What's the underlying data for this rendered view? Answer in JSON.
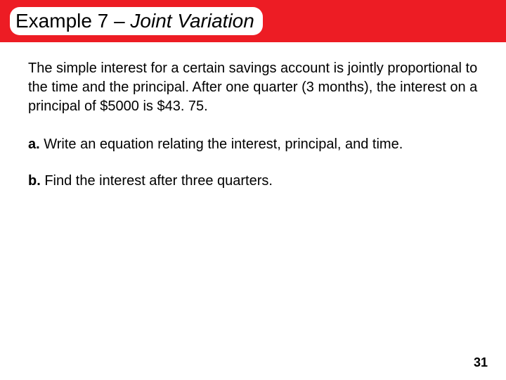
{
  "header": {
    "title_prefix": "Example 7 – ",
    "title_italic": "Joint Variation",
    "bar_color": "#ed1c24",
    "pill_bg": "#ffffff",
    "title_fontsize": 28
  },
  "body": {
    "paragraph": "The simple interest for a certain savings account is jointly proportional to the time and the principal. After one quarter (3 months), the interest on a principal of $5000 is $43. 75.",
    "items": [
      {
        "label": "a.",
        "text": " Write an equation relating the interest, principal, and time."
      },
      {
        "label": "b.",
        "text": " Find the interest after three quarters."
      }
    ],
    "fontsize": 20,
    "text_color": "#000000"
  },
  "page_number": "31"
}
